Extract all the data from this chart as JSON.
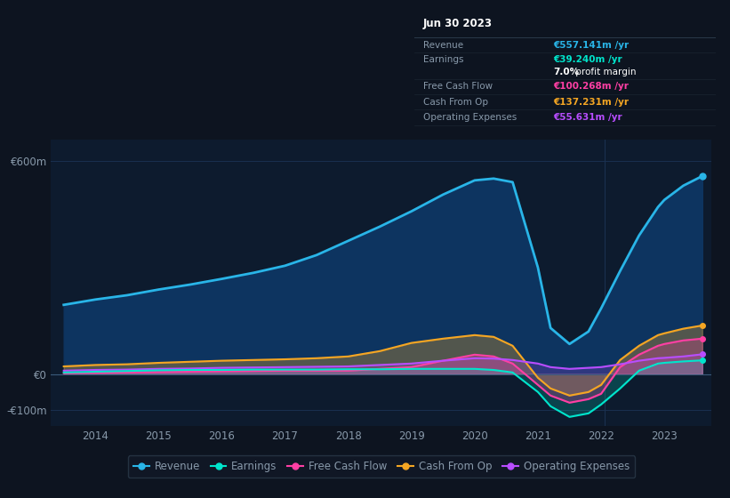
{
  "background_color": "#0d1420",
  "plot_bg_color": "#0d1b2e",
  "grid_color": "#1a3050",
  "text_color": "#8899aa",
  "white": "#ffffff",
  "years": [
    2013.5,
    2014.0,
    2014.5,
    2015.0,
    2015.5,
    2016.0,
    2016.5,
    2017.0,
    2017.5,
    2018.0,
    2018.5,
    2019.0,
    2019.5,
    2020.0,
    2020.3,
    2020.6,
    2021.0,
    2021.2,
    2021.5,
    2021.8,
    2022.0,
    2022.3,
    2022.6,
    2022.9,
    2023.0,
    2023.3,
    2023.6
  ],
  "revenue": [
    195,
    210,
    222,
    238,
    252,
    268,
    285,
    305,
    335,
    375,
    415,
    458,
    505,
    545,
    550,
    540,
    300,
    130,
    85,
    120,
    185,
    290,
    390,
    470,
    490,
    530,
    557
  ],
  "earnings": [
    5,
    7,
    9,
    11,
    12,
    12,
    13,
    13,
    13,
    14,
    14,
    15,
    15,
    15,
    12,
    5,
    -50,
    -90,
    -120,
    -110,
    -85,
    -40,
    10,
    30,
    32,
    36,
    39
  ],
  "free_cash_flow": [
    3,
    4,
    5,
    6,
    7,
    8,
    9,
    10,
    10,
    10,
    15,
    20,
    38,
    55,
    50,
    30,
    -30,
    -60,
    -80,
    -70,
    -55,
    20,
    55,
    80,
    85,
    95,
    100
  ],
  "cash_from_op": [
    22,
    26,
    28,
    32,
    35,
    38,
    40,
    42,
    45,
    50,
    65,
    88,
    100,
    110,
    105,
    80,
    -10,
    -40,
    -60,
    -50,
    -30,
    40,
    80,
    110,
    115,
    128,
    137
  ],
  "op_expenses": [
    10,
    12,
    13,
    15,
    16,
    18,
    19,
    20,
    21,
    22,
    26,
    30,
    38,
    45,
    44,
    40,
    30,
    20,
    15,
    18,
    20,
    28,
    38,
    45,
    46,
    50,
    56
  ],
  "revenue_color": "#29b5e8",
  "earnings_color": "#00e5cc",
  "free_cash_flow_color": "#ff3fa4",
  "cash_from_op_color": "#f5a623",
  "op_expenses_color": "#b84dff",
  "revenue_fill": "#0d3460",
  "legend_bg": "#111827",
  "legend_border": "#2a3a4a",
  "xlim": [
    2013.3,
    2023.75
  ],
  "ylim": [
    -145,
    660
  ],
  "xtick_years": [
    2014,
    2015,
    2016,
    2017,
    2018,
    2019,
    2020,
    2021,
    2022,
    2023
  ],
  "ytick_positions": [
    -100,
    0,
    600
  ],
  "ytick_labels": [
    "-€100m",
    "€0",
    "€600m"
  ],
  "tooltip_title": "Jun 30 2023",
  "tooltip_revenue_label": "Revenue",
  "tooltip_revenue_val": "€557.141m",
  "tooltip_earnings_label": "Earnings",
  "tooltip_earnings_val": "€39.240m",
  "tooltip_margin": "7.0%",
  "tooltip_margin_rest": " profit margin",
  "tooltip_fcf_label": "Free Cash Flow",
  "tooltip_fcf_val": "€100.268m",
  "tooltip_cashop_label": "Cash From Op",
  "tooltip_cashop_val": "€137.231m",
  "tooltip_opex_label": "Operating Expenses",
  "tooltip_opex_val": "€55.631m",
  "per_yr": " /yr"
}
